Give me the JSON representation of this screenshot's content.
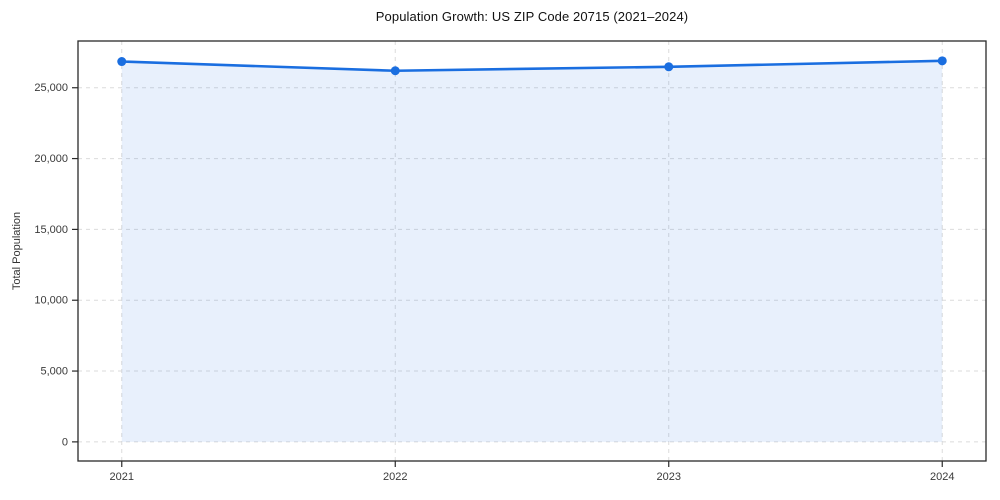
{
  "page": {
    "background": "#ffffff"
  },
  "chart_data": {
    "type": "line",
    "title": "Population Growth: US ZIP Code 20715 (2021–2024)",
    "xlabel": "",
    "ylabel": "Total Population",
    "x": [
      2021,
      2022,
      2023,
      2024
    ],
    "x_tick_labels": [
      "2021",
      "2022",
      "2023",
      "2024"
    ],
    "y_ticks": [
      0,
      5000,
      10000,
      15000,
      20000,
      25000
    ],
    "y_tick_labels": [
      "0",
      "5,000",
      "10,000",
      "15,000",
      "20,000",
      "25,000"
    ],
    "series": [
      {
        "name": "Total Population",
        "values": [
          26850,
          26200,
          26480,
          26900
        ],
        "line_color": "#1a6ee0",
        "fill_color": "rgba(26, 110, 224, 0.10)",
        "marker": "circle"
      }
    ],
    "xlim": [
      2020.84,
      2024.16
    ],
    "ylim": [
      -1350,
      28300
    ],
    "grid": "both-dashed",
    "area_fill": true,
    "legend": "none",
    "colors": {
      "grid": "#dbdbdb",
      "spine": "#2a2a2a",
      "tick_text": "#3a3a3a",
      "title_text": "#111111"
    }
  }
}
